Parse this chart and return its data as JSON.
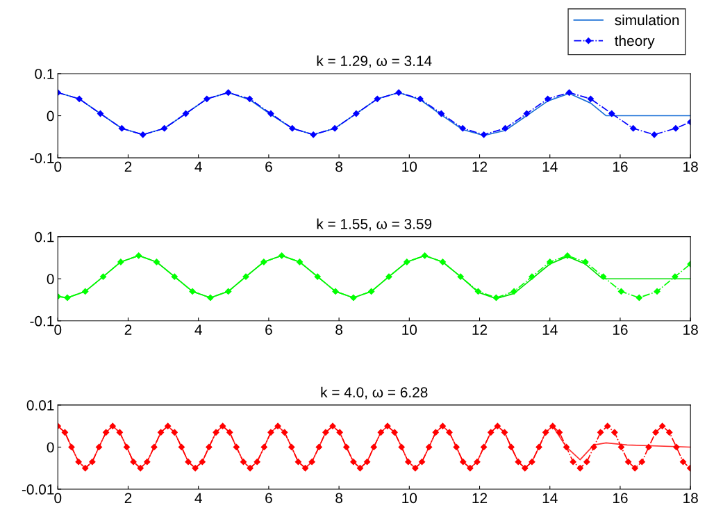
{
  "chart_data": [
    {
      "type": "line",
      "title": "k = 1.29, ω = 3.14",
      "legend": "top right",
      "xlim": [
        0,
        18
      ],
      "xticks": [
        0,
        2,
        4,
        6,
        8,
        10,
        12,
        14,
        16,
        18
      ],
      "ylim": [
        -0.1,
        0.1
      ],
      "yticks": [
        -0.1,
        0,
        0.1
      ],
      "grid": false,
      "series": [
        {
          "name": "simulation",
          "color": "#1a6fd6",
          "marker": "none",
          "line_style": "solid",
          "x": [
            0,
            0.61,
            1.21,
            1.82,
            2.42,
            3.03,
            3.64,
            4.24,
            4.85,
            5.46,
            6.06,
            6.67,
            7.27,
            7.88,
            8.49,
            9.09,
            9.7,
            10.31,
            10.91,
            11.52,
            12.12,
            12.73,
            13.34,
            13.94,
            14.55,
            15.16,
            15.6,
            18
          ],
          "values": [
            0.055,
            0.04,
            0.005,
            -0.03,
            -0.045,
            -0.03,
            0.005,
            0.04,
            0.055,
            0.038,
            0.003,
            -0.03,
            -0.045,
            -0.03,
            0.005,
            0.04,
            0.055,
            0.038,
            0.002,
            -0.033,
            -0.047,
            -0.035,
            0.0,
            0.035,
            0.053,
            0.03,
            0.0,
            0.0
          ]
        },
        {
          "name": "theory",
          "color": "#0000ff",
          "marker": "diamond",
          "line_style": "dashdot",
          "x": [
            0,
            0.61,
            1.21,
            1.82,
            2.42,
            3.03,
            3.64,
            4.24,
            4.85,
            5.46,
            6.06,
            6.67,
            7.27,
            7.88,
            8.49,
            9.09,
            9.7,
            10.31,
            10.91,
            11.52,
            12.12,
            12.73,
            13.34,
            13.94,
            14.55,
            15.16,
            15.76,
            16.37,
            16.97,
            17.58,
            18
          ],
          "values": [
            0.055,
            0.04,
            0.005,
            -0.03,
            -0.045,
            -0.03,
            0.005,
            0.04,
            0.055,
            0.04,
            0.005,
            -0.03,
            -0.045,
            -0.03,
            0.005,
            0.04,
            0.055,
            0.04,
            0.005,
            -0.03,
            -0.045,
            -0.03,
            0.005,
            0.04,
            0.055,
            0.04,
            0.005,
            -0.03,
            -0.045,
            -0.03,
            -0.015
          ]
        }
      ]
    },
    {
      "type": "line",
      "title": "k = 1.55, ω = 3.59",
      "legend": false,
      "xlim": [
        0,
        18
      ],
      "xticks": [
        0,
        2,
        4,
        6,
        8,
        10,
        12,
        14,
        16,
        18
      ],
      "ylim": [
        -0.1,
        0.1
      ],
      "yticks": [
        -0.1,
        0,
        0.1
      ],
      "grid": false,
      "series": [
        {
          "color": "#00e000",
          "marker": "none",
          "line_style": "solid",
          "x": [
            0,
            0.27,
            0.78,
            1.29,
            1.79,
            2.3,
            2.81,
            3.32,
            3.83,
            4.34,
            4.85,
            5.35,
            5.86,
            6.37,
            6.88,
            7.39,
            7.9,
            8.41,
            8.92,
            9.42,
            9.93,
            10.44,
            10.95,
            11.46,
            11.96,
            12.47,
            12.98,
            13.49,
            14.0,
            14.5,
            15.01,
            15.5,
            18
          ],
          "values": [
            -0.042,
            -0.045,
            -0.03,
            0.005,
            0.04,
            0.055,
            0.04,
            0.005,
            -0.03,
            -0.045,
            -0.03,
            0.005,
            0.04,
            0.055,
            0.04,
            0.005,
            -0.03,
            -0.045,
            -0.03,
            0.005,
            0.04,
            0.055,
            0.04,
            0.005,
            -0.032,
            -0.047,
            -0.035,
            0.0,
            0.035,
            0.053,
            0.035,
            0.0,
            0.0
          ]
        },
        {
          "color": "#00ff00",
          "marker": "diamond",
          "line_style": "dashdot",
          "x": [
            0,
            0.27,
            0.78,
            1.29,
            1.79,
            2.3,
            2.81,
            3.32,
            3.83,
            4.34,
            4.85,
            5.35,
            5.86,
            6.37,
            6.88,
            7.39,
            7.9,
            8.41,
            8.92,
            9.42,
            9.93,
            10.44,
            10.95,
            11.46,
            11.96,
            12.47,
            12.98,
            13.49,
            14.0,
            14.5,
            15.01,
            15.52,
            16.03,
            16.54,
            17.05,
            17.56,
            18
          ],
          "values": [
            -0.042,
            -0.045,
            -0.03,
            0.005,
            0.04,
            0.055,
            0.04,
            0.005,
            -0.03,
            -0.045,
            -0.03,
            0.005,
            0.04,
            0.055,
            0.04,
            0.005,
            -0.03,
            -0.045,
            -0.03,
            0.005,
            0.04,
            0.055,
            0.04,
            0.005,
            -0.03,
            -0.045,
            -0.03,
            0.005,
            0.04,
            0.055,
            0.04,
            0.005,
            -0.03,
            -0.045,
            -0.03,
            0.005,
            0.035
          ]
        }
      ]
    },
    {
      "type": "line",
      "title": "k = 4.0, ω = 6.28",
      "legend": false,
      "xlim": [
        0,
        18
      ],
      "xticks": [
        0,
        2,
        4,
        6,
        8,
        10,
        12,
        14,
        16,
        18
      ],
      "ylim": [
        -0.01,
        0.01
      ],
      "yticks": [
        -0.01,
        0,
        0.01
      ],
      "grid": false,
      "series": [
        {
          "color": "#ff3030",
          "marker": "none",
          "line_style": "solid",
          "x": [
            0,
            0.2,
            0.39,
            0.59,
            0.78,
            0.98,
            1.17,
            1.37,
            1.56,
            1.76,
            1.96,
            2.15,
            2.35,
            2.54,
            2.74,
            2.93,
            3.13,
            3.32,
            3.52,
            3.71,
            3.91,
            4.11,
            4.3,
            4.5,
            4.69,
            4.89,
            5.08,
            5.28,
            5.47,
            5.67,
            5.87,
            6.06,
            6.26,
            6.45,
            6.65,
            6.84,
            7.04,
            7.23,
            7.43,
            7.62,
            7.82,
            8.02,
            8.21,
            8.41,
            8.6,
            8.8,
            8.99,
            9.19,
            9.38,
            9.58,
            9.78,
            9.97,
            10.17,
            10.36,
            10.56,
            10.75,
            10.95,
            11.14,
            11.34,
            11.53,
            11.73,
            11.93,
            12.12,
            12.32,
            12.51,
            12.71,
            12.9,
            13.1,
            13.29,
            13.49,
            13.69,
            13.88,
            14.08,
            14.47,
            14.86,
            15.25,
            15.6,
            16.2,
            18
          ],
          "values": [
            0.005,
            0.0035,
            0,
            -0.0035,
            -0.005,
            -0.0035,
            0,
            0.0035,
            0.005,
            0.0035,
            0,
            -0.0035,
            -0.005,
            -0.0035,
            0,
            0.0035,
            0.005,
            0.0035,
            0,
            -0.0035,
            -0.005,
            -0.0035,
            0,
            0.0035,
            0.005,
            0.0035,
            0,
            -0.0035,
            -0.005,
            -0.0035,
            0,
            0.0035,
            0.005,
            0.0035,
            0,
            -0.0035,
            -0.005,
            -0.0035,
            0,
            0.0035,
            0.005,
            0.0035,
            0,
            -0.0035,
            -0.005,
            -0.0035,
            0,
            0.0035,
            0.005,
            0.0035,
            0,
            -0.0035,
            -0.005,
            -0.0035,
            0,
            0.0035,
            0.005,
            0.0035,
            0,
            -0.0035,
            -0.005,
            -0.0035,
            0,
            0.0035,
            0.005,
            0.0035,
            0,
            -0.0035,
            -0.005,
            -0.0035,
            0,
            0.0035,
            0.005,
            0.0,
            -0.003,
            0.0005,
            0.001,
            0.0005,
            0.0
          ]
        },
        {
          "color": "#ff0000",
          "marker": "diamond",
          "line_style": "dashdot",
          "x": [
            0,
            0.2,
            0.39,
            0.59,
            0.78,
            0.98,
            1.17,
            1.37,
            1.56,
            1.76,
            1.96,
            2.15,
            2.35,
            2.54,
            2.74,
            2.93,
            3.13,
            3.32,
            3.52,
            3.71,
            3.91,
            4.11,
            4.3,
            4.5,
            4.69,
            4.89,
            5.08,
            5.28,
            5.47,
            5.67,
            5.87,
            6.06,
            6.26,
            6.45,
            6.65,
            6.84,
            7.04,
            7.23,
            7.43,
            7.62,
            7.82,
            8.02,
            8.21,
            8.41,
            8.6,
            8.8,
            8.99,
            9.19,
            9.38,
            9.58,
            9.78,
            9.97,
            10.17,
            10.36,
            10.56,
            10.75,
            10.95,
            11.14,
            11.34,
            11.53,
            11.73,
            11.93,
            12.12,
            12.32,
            12.51,
            12.71,
            12.9,
            13.1,
            13.29,
            13.49,
            13.69,
            13.88,
            14.08,
            14.27,
            14.47,
            14.66,
            14.86,
            15.05,
            15.25,
            15.44,
            15.64,
            15.84,
            16.03,
            16.23,
            16.42,
            16.62,
            16.81,
            17.01,
            17.2,
            17.4,
            17.6,
            17.79,
            17.99
          ],
          "values": [
            0.005,
            0.0035,
            0,
            -0.0035,
            -0.005,
            -0.0035,
            0,
            0.0035,
            0.005,
            0.0035,
            0,
            -0.0035,
            -0.005,
            -0.0035,
            0,
            0.0035,
            0.005,
            0.0035,
            0,
            -0.0035,
            -0.005,
            -0.0035,
            0,
            0.0035,
            0.005,
            0.0035,
            0,
            -0.0035,
            -0.005,
            -0.0035,
            0,
            0.0035,
            0.005,
            0.0035,
            0,
            -0.0035,
            -0.005,
            -0.0035,
            0,
            0.0035,
            0.005,
            0.0035,
            0,
            -0.0035,
            -0.005,
            -0.0035,
            0,
            0.0035,
            0.005,
            0.0035,
            0,
            -0.0035,
            -0.005,
            -0.0035,
            0,
            0.0035,
            0.005,
            0.0035,
            0,
            -0.0035,
            -0.005,
            -0.0035,
            0,
            0.0035,
            0.005,
            0.0035,
            0,
            -0.0035,
            -0.005,
            -0.0035,
            0,
            0.0035,
            0.005,
            0.0035,
            0,
            -0.0035,
            -0.005,
            -0.0035,
            0,
            0.0035,
            0.005,
            0.0035,
            0,
            -0.0035,
            -0.005,
            -0.0035,
            0,
            0.0035,
            0.005,
            0.0035,
            0,
            -0.0035,
            -0.005
          ]
        }
      ]
    }
  ]
}
